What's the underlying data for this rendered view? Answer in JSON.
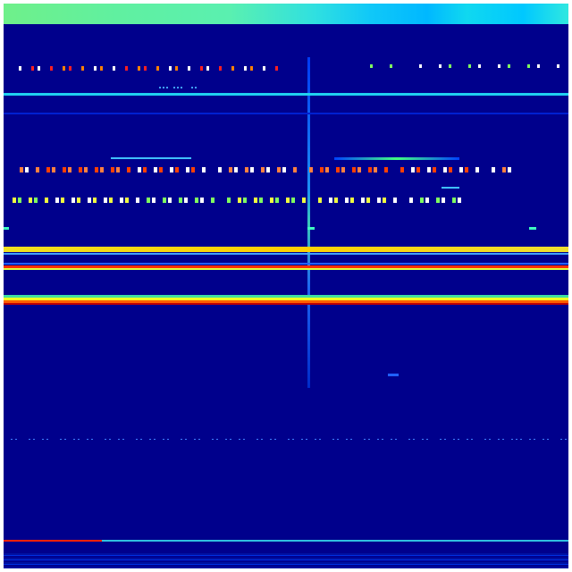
{
  "colormap": {
    "background": "#00008c",
    "low": "#0000ff",
    "mid_cyan": "#00e0ff",
    "mid_green": "#80ff80",
    "high_yellow": "#ffff00",
    "peak_red": "#ff2000"
  }
}
